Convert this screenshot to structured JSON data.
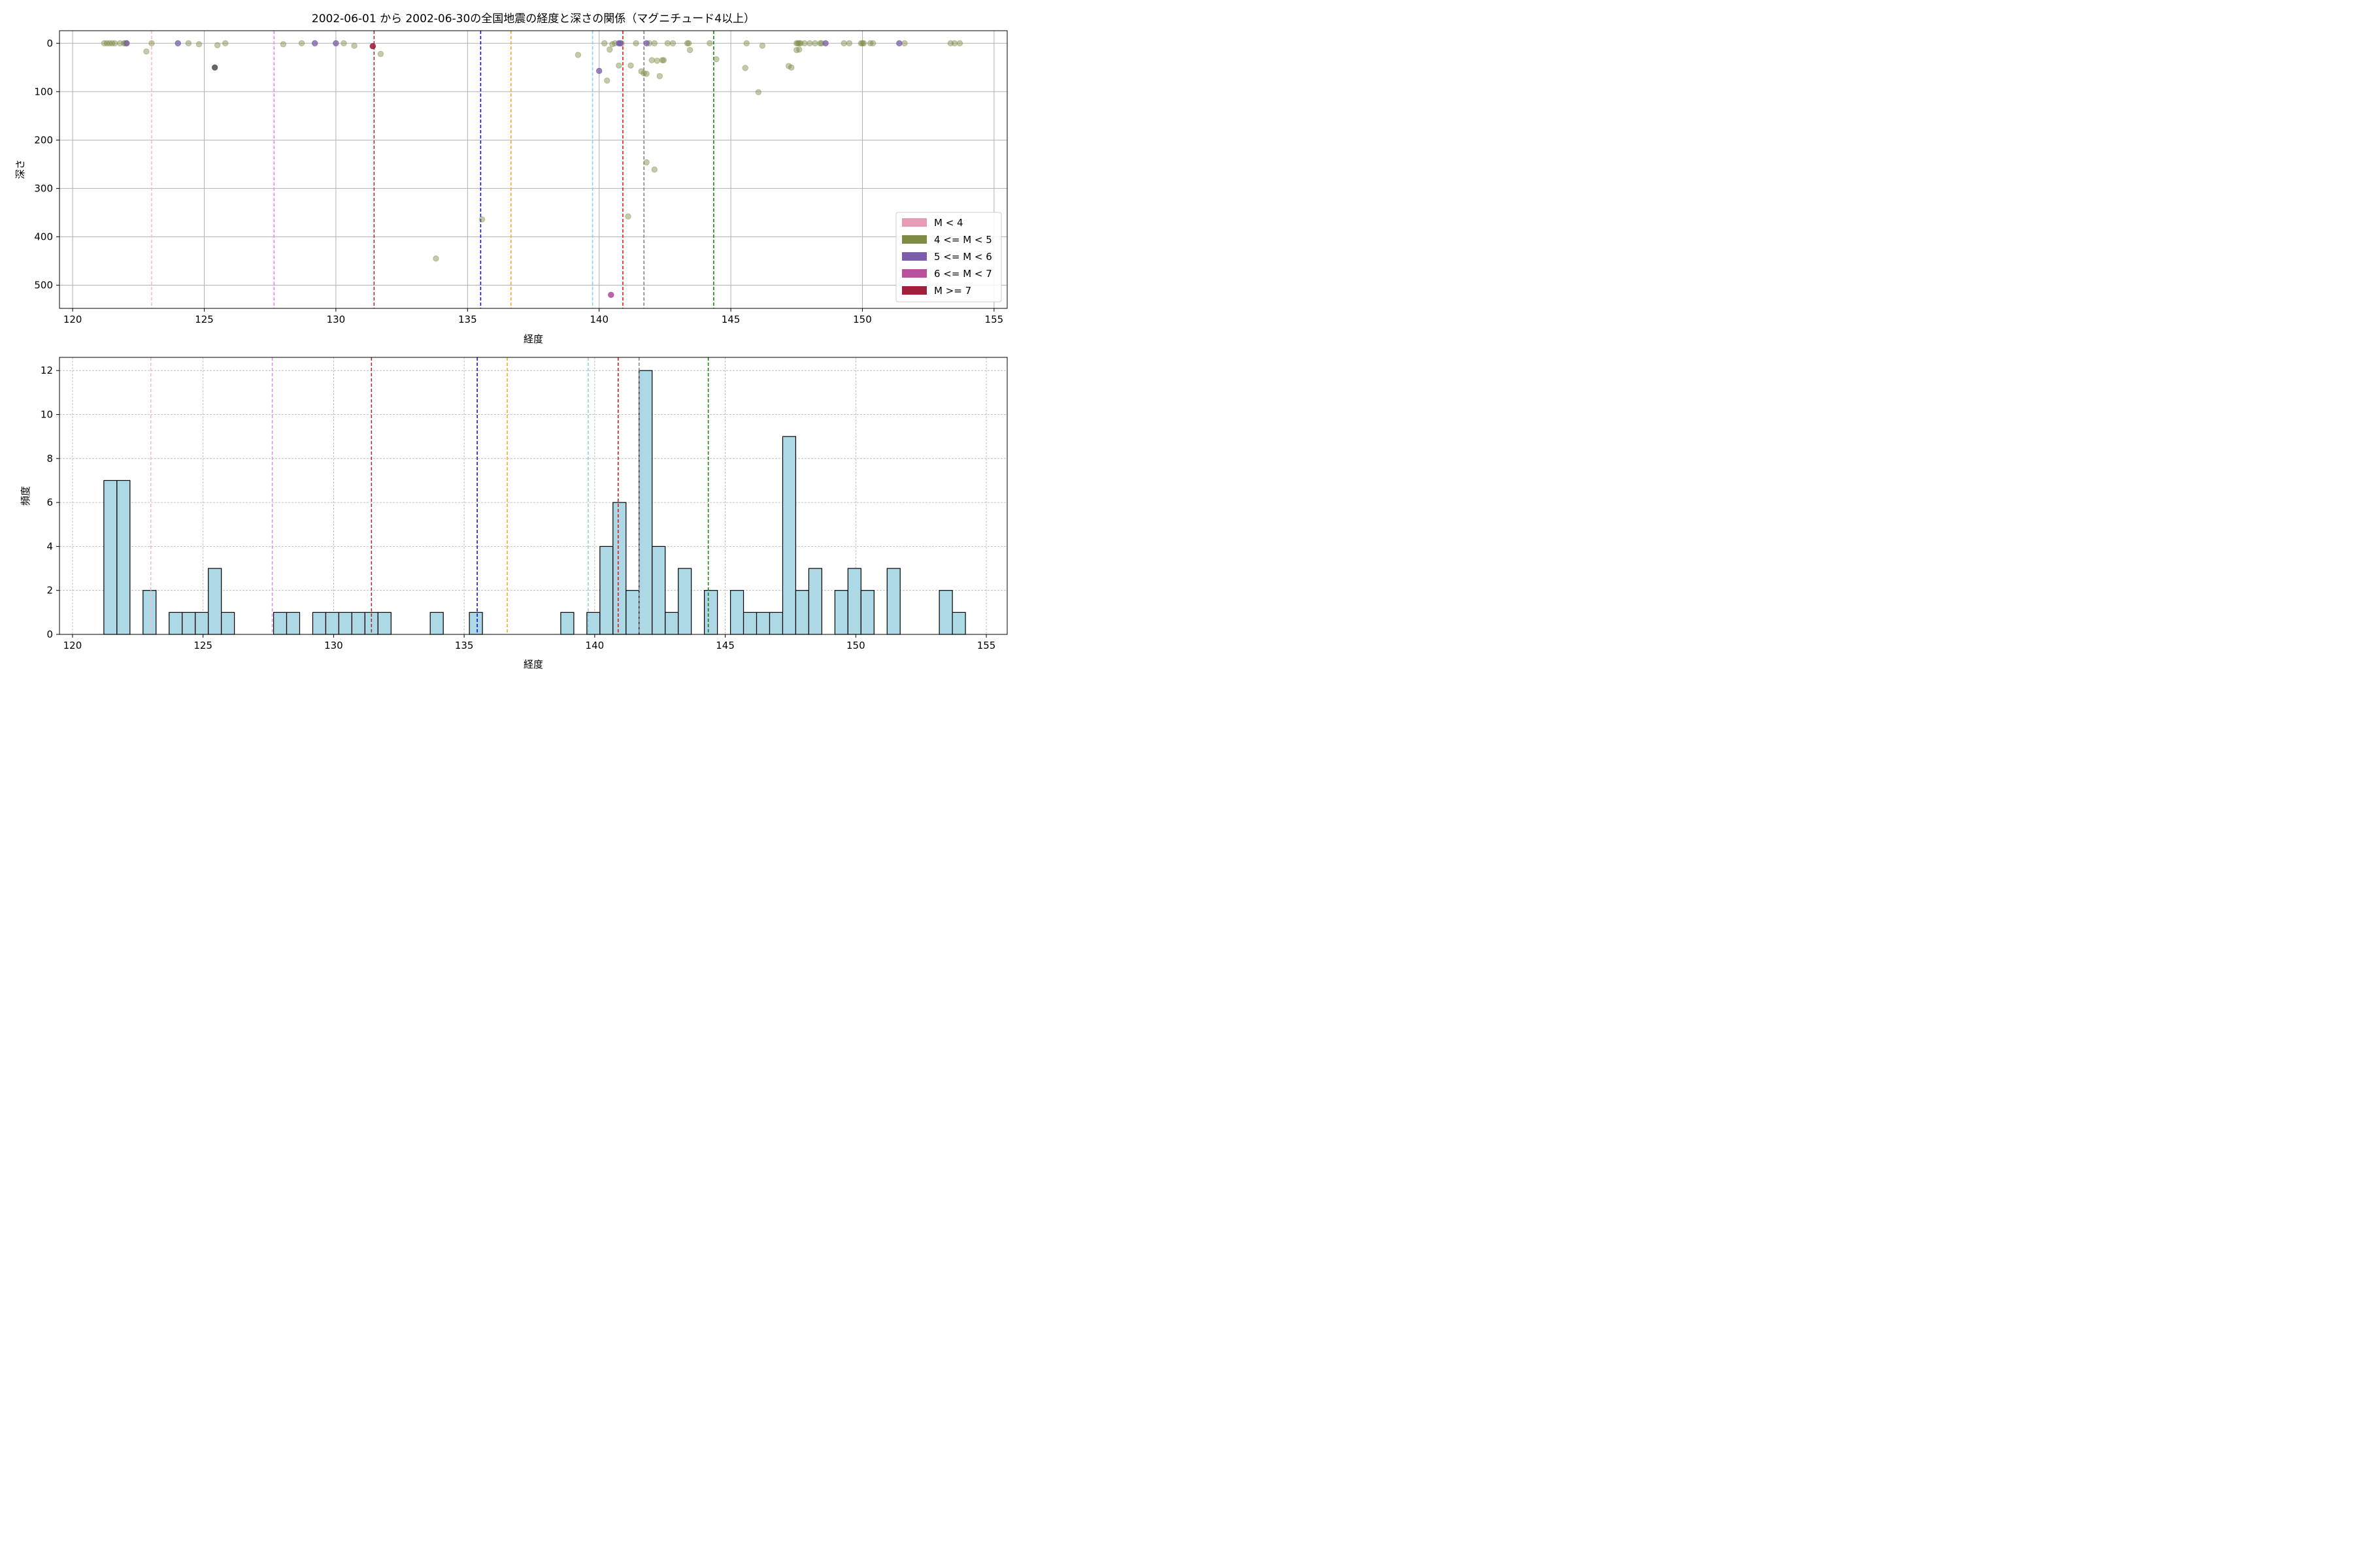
{
  "chart_data": [
    {
      "type": "scatter",
      "title": "2002-06-01 から 2002-06-30の全国地震の経度と深さの関係（マグニチュード4以上）",
      "xlabel": "経度",
      "ylabel": "深さ",
      "xlim": [
        119.5,
        155.5
      ],
      "ylim": [
        548,
        -26
      ],
      "y_inverted": true,
      "grid": true,
      "legend_position": "lower-right",
      "x_ticks": [
        120,
        125,
        130,
        135,
        140,
        145,
        150,
        155
      ],
      "y_ticks": [
        0,
        100,
        200,
        300,
        400,
        500
      ],
      "legend": [
        {
          "label": "M < 4",
          "color": "#e69ab8"
        },
        {
          "label": "4 <= M < 5",
          "color": "#7c8c44"
        },
        {
          "label": "5 <= M < 6",
          "color": "#7a5caa"
        },
        {
          "label": "6 <= M < 7",
          "color": "#b8509c"
        },
        {
          "label": "M >= 7",
          "color": "#a0203c"
        }
      ],
      "vlines": [
        {
          "x": 123.0,
          "color": "#ffb6c1"
        },
        {
          "x": 127.65,
          "color": "#ee82ee"
        },
        {
          "x": 131.45,
          "color": "#b22222"
        },
        {
          "x": 135.5,
          "color": "#0000ff"
        },
        {
          "x": 136.65,
          "color": "#ffa500"
        },
        {
          "x": 139.75,
          "color": "#87ceeb"
        },
        {
          "x": 140.9,
          "color": "#ff0000"
        },
        {
          "x": 141.7,
          "color": "#808080"
        },
        {
          "x": 144.35,
          "color": "#008000"
        }
      ],
      "series": [
        {
          "magnitude_class": "4 <= M < 5",
          "color": "#7c8c44",
          "points": [
            [
              121.2,
              0
            ],
            [
              121.3,
              0
            ],
            [
              121.4,
              0
            ],
            [
              121.5,
              0
            ],
            [
              121.6,
              0
            ],
            [
              121.8,
              0
            ],
            [
              121.95,
              0
            ],
            [
              122.0,
              0
            ],
            [
              122.05,
              0
            ],
            [
              122.8,
              17
            ],
            [
              123.0,
              0
            ],
            [
              124.4,
              0
            ],
            [
              124.8,
              2
            ],
            [
              125.5,
              4
            ],
            [
              125.8,
              0
            ],
            [
              128.0,
              2
            ],
            [
              128.7,
              0
            ],
            [
              130.3,
              0
            ],
            [
              130.7,
              5
            ],
            [
              131.7,
              22
            ],
            [
              135.55,
              364
            ],
            [
              133.8,
              445
            ],
            [
              139.2,
              24
            ],
            [
              140.2,
              0
            ],
            [
              140.3,
              77
            ],
            [
              140.4,
              13
            ],
            [
              140.5,
              2
            ],
            [
              140.6,
              0
            ],
            [
              140.75,
              46
            ],
            [
              140.85,
              0
            ],
            [
              141.1,
              358
            ],
            [
              141.2,
              46
            ],
            [
              141.4,
              0
            ],
            [
              141.6,
              58
            ],
            [
              141.8,
              246
            ],
            [
              141.7,
              62
            ],
            [
              141.8,
              63
            ],
            [
              141.9,
              0
            ],
            [
              142.0,
              35
            ],
            [
              142.1,
              0
            ],
            [
              142.1,
              261
            ],
            [
              142.2,
              36
            ],
            [
              142.3,
              68
            ],
            [
              142.4,
              35
            ],
            [
              142.45,
              35
            ],
            [
              142.6,
              0
            ],
            [
              142.8,
              0
            ],
            [
              143.35,
              0
            ],
            [
              143.4,
              0
            ],
            [
              143.45,
              14
            ],
            [
              144.2,
              0
            ],
            [
              144.45,
              33
            ],
            [
              145.55,
              51
            ],
            [
              145.6,
              0
            ],
            [
              146.05,
              101
            ],
            [
              146.2,
              5
            ],
            [
              147.2,
              47
            ],
            [
              147.3,
              50
            ],
            [
              147.5,
              0
            ],
            [
              147.55,
              0
            ],
            [
              147.6,
              0
            ],
            [
              147.65,
              0
            ],
            [
              147.5,
              14
            ],
            [
              147.6,
              13
            ],
            [
              147.8,
              0
            ],
            [
              148.0,
              0
            ],
            [
              148.2,
              0
            ],
            [
              148.4,
              0
            ],
            [
              148.45,
              0
            ],
            [
              149.3,
              0
            ],
            [
              149.5,
              0
            ],
            [
              149.95,
              0
            ],
            [
              150.0,
              0
            ],
            [
              150.05,
              0
            ],
            [
              150.3,
              0
            ],
            [
              150.4,
              0
            ],
            [
              151.6,
              0
            ],
            [
              153.35,
              0
            ],
            [
              153.5,
              0
            ],
            [
              153.7,
              0
            ]
          ]
        },
        {
          "magnitude_class": "5 <= M < 6",
          "color": "#7a5caa",
          "points": [
            [
              122.05,
              0
            ],
            [
              124.0,
              0
            ],
            [
              129.2,
              0
            ],
            [
              130.0,
              0
            ],
            [
              140.0,
              57
            ],
            [
              140.75,
              0
            ],
            [
              140.8,
              0
            ],
            [
              141.8,
              0
            ],
            [
              148.6,
              0
            ],
            [
              151.4,
              0
            ]
          ]
        },
        {
          "magnitude_class": "6 <= M < 7",
          "color": "#b8509c",
          "points": [
            [
              140.45,
              520
            ]
          ]
        },
        {
          "magnitude_class": "M >= 7",
          "color": "#a0203c",
          "points": [
            [
              131.4,
              6
            ]
          ]
        },
        {
          "magnitude_class": "other",
          "color": "#555555",
          "points": [
            [
              125.4,
              50
            ]
          ]
        }
      ]
    },
    {
      "type": "bar",
      "title": "",
      "xlabel": "経度",
      "ylabel": "頻度",
      "xlim": [
        119.5,
        155.8
      ],
      "ylim": [
        0,
        12.6
      ],
      "grid": true,
      "x_ticks": [
        120,
        125,
        130,
        135,
        140,
        145,
        150,
        155
      ],
      "y_ticks": [
        0,
        2,
        4,
        6,
        8,
        10,
        12
      ],
      "bar_color": "#add8e6",
      "bar_edge_color": "#000000",
      "bin_width": 0.5,
      "bins": [
        [
          121.2,
          7
        ],
        [
          121.7,
          7
        ],
        [
          122.7,
          2
        ],
        [
          123.7,
          1
        ],
        [
          124.2,
          1
        ],
        [
          124.7,
          1
        ],
        [
          125.2,
          3
        ],
        [
          125.7,
          1
        ],
        [
          127.7,
          1
        ],
        [
          128.2,
          1
        ],
        [
          129.2,
          1
        ],
        [
          129.7,
          1
        ],
        [
          130.2,
          1
        ],
        [
          130.7,
          1
        ],
        [
          131.2,
          1
        ],
        [
          131.7,
          1
        ],
        [
          133.7,
          1
        ],
        [
          135.2,
          1
        ],
        [
          138.7,
          1
        ],
        [
          139.7,
          1
        ],
        [
          140.2,
          4
        ],
        [
          140.7,
          6
        ],
        [
          141.2,
          2
        ],
        [
          141.7,
          12
        ],
        [
          142.2,
          4
        ],
        [
          142.7,
          1
        ],
        [
          143.2,
          3
        ],
        [
          144.2,
          2
        ],
        [
          145.2,
          2
        ],
        [
          145.7,
          1
        ],
        [
          146.2,
          1
        ],
        [
          146.7,
          1
        ],
        [
          147.2,
          9
        ],
        [
          147.7,
          2
        ],
        [
          148.2,
          3
        ],
        [
          149.2,
          2
        ],
        [
          149.7,
          3
        ],
        [
          150.2,
          2
        ],
        [
          151.2,
          3
        ],
        [
          153.2,
          2
        ],
        [
          153.7,
          1
        ]
      ],
      "vlines": [
        {
          "x": 123.0,
          "color": "#ffb6c1"
        },
        {
          "x": 127.65,
          "color": "#ee82ee"
        },
        {
          "x": 131.45,
          "color": "#b22222"
        },
        {
          "x": 135.5,
          "color": "#0000ff"
        },
        {
          "x": 136.65,
          "color": "#ffa500"
        },
        {
          "x": 139.75,
          "color": "#87ceeb"
        },
        {
          "x": 140.9,
          "color": "#ff0000"
        },
        {
          "x": 141.7,
          "color": "#808080"
        },
        {
          "x": 144.35,
          "color": "#008000"
        }
      ]
    }
  ]
}
